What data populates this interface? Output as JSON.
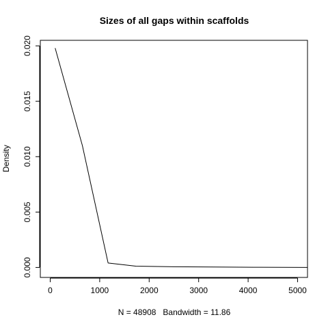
{
  "chart_data": {
    "type": "line",
    "title": "Sizes of all gaps within scaffolds",
    "xlabel": "N = 48908   Bandwidth = 11.86",
    "ylabel": "Density",
    "xlim": [
      -200,
      5200
    ],
    "ylim": [
      -0.0009,
      0.0205
    ],
    "x_ticks": [
      0,
      1000,
      2000,
      3000,
      4000,
      5000
    ],
    "x_tick_labels": [
      "0",
      "1000",
      "2000",
      "3000",
      "4000",
      "5000"
    ],
    "y_ticks": [
      0.0,
      0.005,
      0.01,
      0.015,
      0.02
    ],
    "y_tick_labels": [
      "0.000",
      "0.005",
      "0.010",
      "0.015",
      "0.020"
    ],
    "grid": false,
    "box": true,
    "series": [
      {
        "x": [
          100,
          650,
          1170,
          1730,
          2500,
          3300,
          4100,
          5200
        ],
        "y": [
          0.0198,
          0.011,
          0.0004,
          0.00012,
          6e-05,
          4e-05,
          2e-05,
          0.0
        ]
      }
    ],
    "colors": {
      "line": "#000000",
      "axis": "#000000",
      "background": "#ffffff"
    }
  }
}
